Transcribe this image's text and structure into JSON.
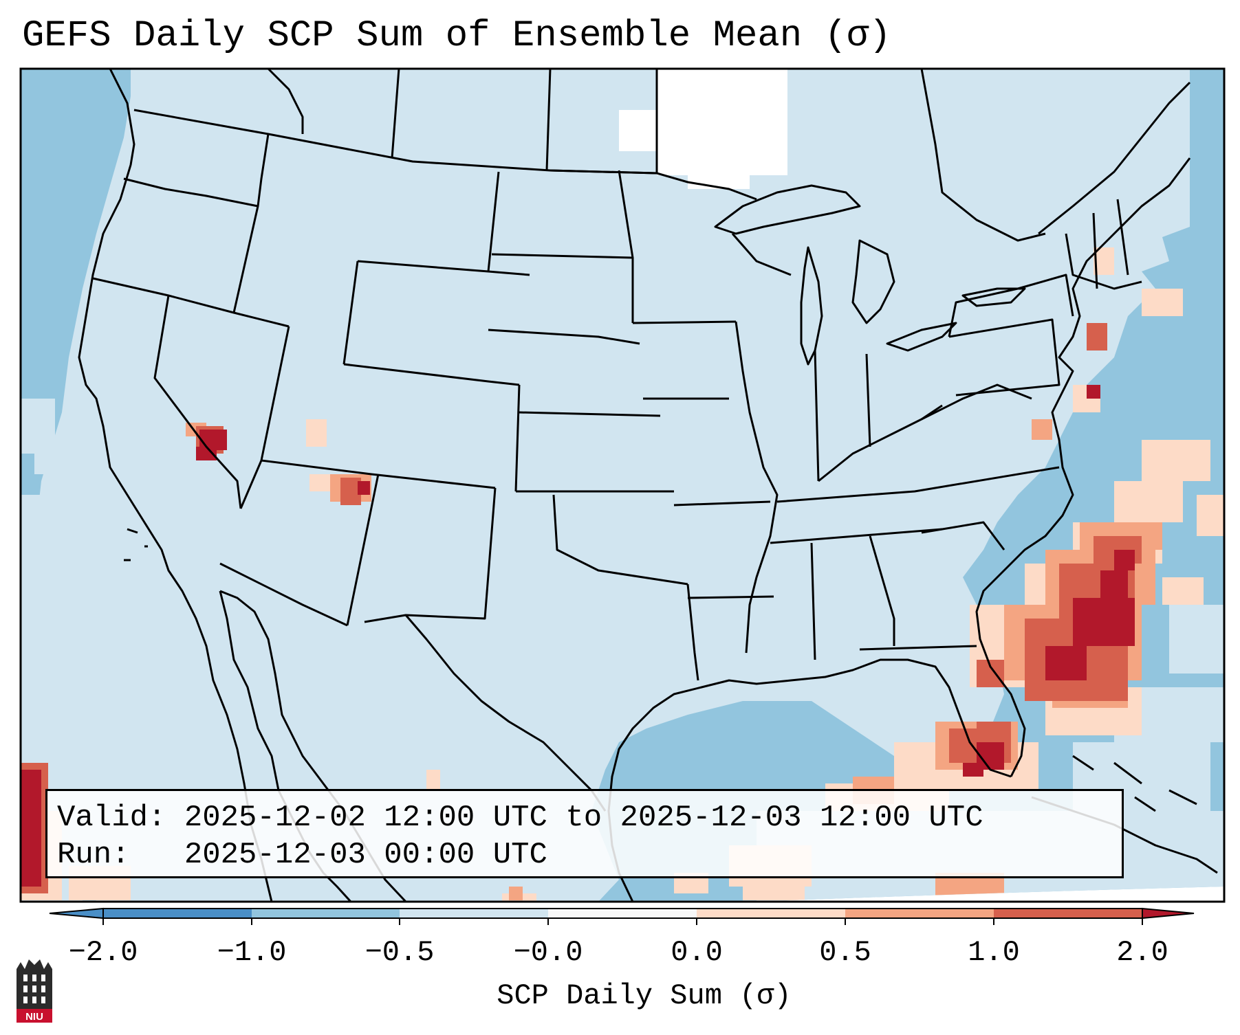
{
  "title": "GEFS Daily SCP Sum of Ensemble Mean (σ)",
  "valid_line": "Valid: 2025-12-02 12:00 UTC to 2025-12-03 12:00 UTC",
  "run_line": "Run:   2025-12-03 00:00 UTC",
  "colorbar": {
    "label": "SCP Daily Sum (σ)",
    "ticks": [
      "−2.0",
      "−1.0",
      "−0.5",
      "−0.0",
      "0.0",
      "0.5",
      "1.0",
      "2.0"
    ],
    "colors": [
      "#4a8fc7",
      "#92c5de",
      "#d1e5f0",
      "#f7f7f7",
      "#fddbc7",
      "#f4a582",
      "#d6604d",
      "#b2182b"
    ]
  },
  "logo_text": "NIU",
  "colors": {
    "ocean": "#92c5de",
    "land": "#d1e5f0",
    "light_red": "#fddbc7",
    "medium_red": "#f4a582",
    "red": "#d6604d",
    "dark_red": "#b2182b"
  }
}
